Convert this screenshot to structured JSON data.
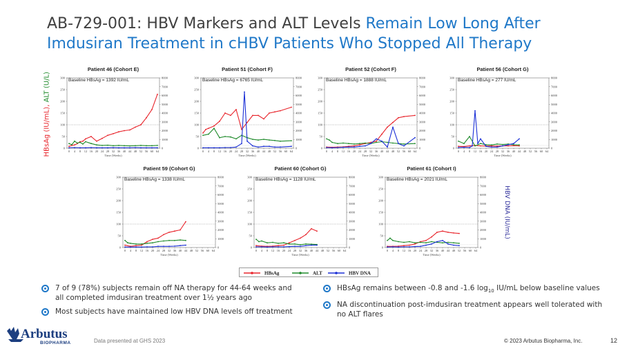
{
  "slide": {
    "title_part1": "AB-729-001: HBV Markers and ALT Levels ",
    "title_part2": "Remain Low Long After Imdusiran Treatment in cHBV Patients Who Stopped All Therapy",
    "left_axis_label_hbsag": "HBsAg (IU/mL), ",
    "left_axis_label_alt": "ALT (U/L)",
    "right_axis_label": "HBV DNA (IU/mL)",
    "page_number": "12",
    "footnote": "Data presented at GHS 2023",
    "copyright": "© 2023 Arbutus Biopharma, Inc.",
    "logo_text": "Arbutus",
    "logo_subtext": "BIOPHARMA"
  },
  "colors": {
    "hbsag": "#e8242b",
    "alt": "#1e8a2a",
    "dna": "#1a2fd6",
    "accent": "#1f78c8",
    "logo_blue": "#1d3f80"
  },
  "legend": {
    "hbsag": "HBsAg",
    "alt": "ALT",
    "dna": "HBV DNA"
  },
  "bullets_left": [
    "7 of 9 (78%) subjects remain off NA therapy for 44-64 weeks and all completed imdusiran treatment over 1½ years ago",
    "Most subjects have maintained low HBV DNA levels off treatment"
  ],
  "bullets_right": {
    "b1_pre": "HBsAg remains between -0.8 and -1.6 log",
    "b1_sub": "10",
    "b1_post": " IU/mL below baseline values",
    "b2": "NA discontinuation post-imdusiran treatment appears well tolerated with no ALT flares"
  },
  "chart_data": [
    {
      "type": "line",
      "title": "Patient 46 (Cohort E)",
      "baseline": "Baseline HBsAg = 1392 IU/mL",
      "xlabel": "Time (Weeks)",
      "x_ticks": [
        "0",
        "4",
        "8",
        "12",
        "16",
        "20",
        "24",
        "28",
        "32",
        "36",
        "40",
        "44",
        "48",
        "52",
        "56",
        "60",
        "64"
      ],
      "y_left_ticks": [
        "0",
        "50",
        "100",
        "150",
        "200",
        "250",
        "300"
      ],
      "y_right_ticks": [
        "0",
        "1000",
        "2000",
        "3000",
        "4000",
        "5000",
        "6000",
        "7000",
        "8000"
      ],
      "ylim": [
        0,
        300
      ],
      "y2lim": [
        0,
        8000
      ],
      "series": [
        {
          "name": "HBsAg",
          "axis": "left",
          "x": [
            0,
            2,
            4,
            6,
            8,
            10,
            12,
            16,
            20,
            24,
            28,
            32,
            36,
            40,
            44,
            48,
            52,
            56,
            60,
            64
          ],
          "y": [
            8,
            12,
            14,
            20,
            28,
            30,
            40,
            50,
            30,
            42,
            55,
            62,
            70,
            75,
            78,
            90,
            100,
            130,
            165,
            230
          ]
        },
        {
          "name": "ALT",
          "axis": "left",
          "x": [
            0,
            2,
            4,
            6,
            8,
            10,
            12,
            16,
            20,
            24,
            28,
            32,
            36,
            40,
            44,
            48,
            52,
            56,
            60,
            64
          ],
          "y": [
            20,
            15,
            30,
            22,
            25,
            18,
            28,
            20,
            14,
            12,
            13,
            11,
            12,
            11,
            10,
            11,
            12,
            11,
            11,
            12
          ]
        },
        {
          "name": "HBV DNA",
          "axis": "left",
          "x": [
            0,
            4,
            8,
            12,
            16,
            20,
            24,
            28,
            32,
            36,
            40,
            44,
            48,
            52,
            56,
            60,
            64
          ],
          "y": [
            2,
            3,
            2,
            2,
            3,
            2,
            2,
            2,
            3,
            2,
            2,
            2,
            3,
            2,
            2,
            2,
            2
          ]
        }
      ]
    },
    {
      "type": "line",
      "title": "Patient 51 (Cohort F)",
      "baseline": "Baseline HBsAg = 6765 IU/mL",
      "xlabel": "Time (Weeks)",
      "x_ticks": [
        "0",
        "4",
        "8",
        "12",
        "16",
        "20",
        "24",
        "28",
        "32",
        "36",
        "40",
        "44",
        "48",
        "52",
        "56",
        "60",
        "64"
      ],
      "y_left_ticks": [
        "0",
        "50",
        "100",
        "150",
        "200",
        "250",
        "300"
      ],
      "y_right_ticks": [
        "0",
        "1000",
        "2000",
        "3000",
        "4000",
        "5000",
        "6000",
        "7000",
        "8000"
      ],
      "ylim": [
        0,
        300
      ],
      "y2lim": [
        0,
        8000
      ],
      "series": [
        {
          "name": "HBsAg",
          "axis": "left",
          "x": [
            0,
            2,
            4,
            8,
            12,
            16,
            20,
            24,
            28,
            32,
            36,
            40,
            44,
            48,
            52,
            56,
            64
          ],
          "y": [
            65,
            80,
            85,
            95,
            115,
            150,
            140,
            165,
            80,
            110,
            140,
            140,
            125,
            150,
            155,
            160,
            175
          ]
        },
        {
          "name": "ALT",
          "axis": "left",
          "x": [
            0,
            4,
            8,
            12,
            16,
            20,
            24,
            28,
            32,
            36,
            40,
            44,
            48,
            52,
            56,
            64
          ],
          "y": [
            55,
            60,
            85,
            45,
            50,
            48,
            40,
            55,
            45,
            38,
            35,
            38,
            35,
            33,
            30,
            32
          ]
        },
        {
          "name": "HBV DNA",
          "axis": "left",
          "x": [
            0,
            4,
            8,
            12,
            16,
            20,
            24,
            28,
            30,
            32,
            36,
            40,
            44,
            48,
            52,
            56,
            64
          ],
          "y": [
            2,
            2,
            2,
            2,
            3,
            3,
            5,
            20,
            240,
            30,
            10,
            5,
            8,
            8,
            5,
            5,
            8
          ]
        }
      ]
    },
    {
      "type": "line",
      "title": "Patient 52 (Cohort F)",
      "baseline": "Baseline HBsAg = 1888 IU/mL",
      "xlabel": "Time (Weeks)",
      "x_ticks": [
        "0",
        "4",
        "8",
        "12",
        "16",
        "20",
        "24",
        "28",
        "32",
        "36",
        "40",
        "44",
        "48",
        "52",
        "56",
        "60",
        "64"
      ],
      "y_left_ticks": [
        "0",
        "50",
        "100",
        "150",
        "200",
        "250",
        "300"
      ],
      "y_right_ticks": [
        "0",
        "1000",
        "2000",
        "3000",
        "4000",
        "5000",
        "6000",
        "7000",
        "8000"
      ],
      "ylim": [
        0,
        300
      ],
      "y2lim": [
        0,
        8000
      ],
      "series": [
        {
          "name": "HBsAg",
          "axis": "left",
          "x": [
            0,
            4,
            8,
            12,
            16,
            20,
            24,
            28,
            32,
            36,
            40,
            44,
            48,
            52,
            56,
            64
          ],
          "y": [
            5,
            4,
            5,
            6,
            8,
            10,
            15,
            20,
            25,
            30,
            60,
            90,
            110,
            130,
            135,
            140
          ]
        },
        {
          "name": "ALT",
          "axis": "left",
          "x": [
            0,
            2,
            4,
            8,
            12,
            16,
            20,
            24,
            28,
            32,
            36,
            40,
            44,
            48,
            52,
            56,
            64
          ],
          "y": [
            40,
            35,
            25,
            20,
            22,
            20,
            18,
            20,
            22,
            20,
            25,
            28,
            25,
            22,
            20,
            18,
            20
          ]
        },
        {
          "name": "HBV DNA",
          "axis": "left",
          "x": [
            0,
            4,
            8,
            12,
            16,
            20,
            24,
            28,
            32,
            36,
            40,
            44,
            48,
            52,
            56,
            64
          ],
          "y": [
            3,
            2,
            3,
            4,
            5,
            5,
            8,
            10,
            20,
            40,
            30,
            5,
            90,
            20,
            10,
            45
          ]
        }
      ]
    },
    {
      "type": "line",
      "title": "Patient 56 (Cohort G)",
      "baseline": "Baseline HBsAg = 277 IU/mL",
      "xlabel": "Time (Weeks)",
      "x_ticks": [
        "0",
        "4",
        "8",
        "12",
        "16",
        "20",
        "24",
        "28",
        "32",
        "36",
        "40",
        "44",
        "48",
        "52",
        "56",
        "60",
        "64"
      ],
      "y_left_ticks": [
        "0",
        "50",
        "100",
        "150",
        "200",
        "250",
        "300"
      ],
      "y_right_ticks": [
        "0",
        "1000",
        "2000",
        "3000",
        "4000",
        "5000",
        "6000",
        "7000",
        "8000"
      ],
      "ylim": [
        0,
        300
      ],
      "y2lim": [
        0,
        8000
      ],
      "series": [
        {
          "name": "HBsAg",
          "axis": "left",
          "x": [
            0,
            4,
            8,
            12,
            16,
            20,
            24,
            28,
            32,
            36,
            40,
            44
          ],
          "y": [
            8,
            7,
            10,
            12,
            10,
            9,
            10,
            9,
            10,
            10,
            11,
            10
          ]
        },
        {
          "name": "ALT",
          "axis": "left",
          "x": [
            0,
            4,
            8,
            12,
            16,
            20,
            24,
            28,
            32,
            36,
            40,
            44
          ],
          "y": [
            30,
            20,
            50,
            10,
            20,
            15,
            14,
            18,
            16,
            18,
            15,
            14
          ]
        },
        {
          "name": "HBV DNA",
          "axis": "left",
          "x": [
            0,
            4,
            8,
            10,
            12,
            14,
            16,
            20,
            24,
            28,
            32,
            36,
            40,
            44
          ],
          "y": [
            3,
            4,
            3,
            10,
            160,
            20,
            40,
            8,
            5,
            5,
            10,
            15,
            20,
            40
          ]
        }
      ]
    },
    {
      "type": "line",
      "title": "Patient 59 (Cohort G)",
      "baseline": "Baseline HBsAg = 1338 IU/mL",
      "xlabel": "Time (Weeks)",
      "x_ticks": [
        "0",
        "4",
        "8",
        "12",
        "16",
        "20",
        "24",
        "28",
        "32",
        "36",
        "40",
        "44",
        "48",
        "52",
        "56",
        "60",
        "64"
      ],
      "y_left_ticks": [
        "0",
        "50",
        "100",
        "150",
        "200",
        "250",
        "300"
      ],
      "y_right_ticks": [
        "0",
        "1000",
        "2000",
        "3000",
        "4000",
        "5000",
        "6000",
        "7000",
        "8000"
      ],
      "ylim": [
        0,
        300
      ],
      "y2lim": [
        0,
        8000
      ],
      "series": [
        {
          "name": "HBsAg",
          "axis": "left",
          "x": [
            0,
            4,
            8,
            12,
            16,
            20,
            24,
            28,
            32,
            36,
            40,
            44
          ],
          "y": [
            10,
            5,
            8,
            10,
            25,
            35,
            40,
            55,
            65,
            70,
            75,
            110
          ]
        },
        {
          "name": "ALT",
          "axis": "left",
          "x": [
            0,
            2,
            4,
            8,
            12,
            16,
            20,
            24,
            28,
            32,
            36,
            40,
            44
          ],
          "y": [
            30,
            20,
            18,
            15,
            15,
            18,
            20,
            25,
            28,
            30,
            30,
            32,
            30
          ]
        },
        {
          "name": "HBV DNA",
          "axis": "left",
          "x": [
            0,
            4,
            8,
            12,
            16,
            20,
            24,
            28,
            32,
            36,
            40,
            44
          ],
          "y": [
            2,
            2,
            2,
            2,
            3,
            3,
            5,
            5,
            5,
            6,
            8,
            10
          ]
        }
      ]
    },
    {
      "type": "line",
      "title": "Patient 60 (Cohort G)",
      "baseline": "Baseline HBsAg = 1128 IU/mL",
      "xlabel": "Time (Weeks)",
      "x_ticks": [
        "0",
        "4",
        "8",
        "12",
        "16",
        "20",
        "24",
        "28",
        "32",
        "36",
        "40",
        "44",
        "48",
        "52",
        "56",
        "60",
        "64"
      ],
      "y_left_ticks": [
        "0",
        "50",
        "100",
        "150",
        "200",
        "250",
        "300"
      ],
      "y_right_ticks": [
        "0",
        "1000",
        "2000",
        "3000",
        "4000",
        "5000",
        "6000",
        "7000",
        "8000"
      ],
      "ylim": [
        0,
        300
      ],
      "y2lim": [
        0,
        8000
      ],
      "series": [
        {
          "name": "HBsAg",
          "axis": "left",
          "x": [
            0,
            4,
            8,
            12,
            16,
            20,
            24,
            28,
            32,
            36,
            40,
            44
          ],
          "y": [
            8,
            6,
            5,
            6,
            8,
            10,
            20,
            30,
            40,
            55,
            80,
            70
          ]
        },
        {
          "name": "ALT",
          "axis": "left",
          "x": [
            0,
            2,
            4,
            8,
            12,
            16,
            20,
            24,
            28,
            32,
            36,
            40,
            44
          ],
          "y": [
            35,
            25,
            28,
            20,
            22,
            18,
            20,
            15,
            15,
            12,
            15,
            14,
            13
          ]
        },
        {
          "name": "HBV DNA",
          "axis": "left",
          "x": [
            0,
            4,
            8,
            12,
            16,
            20,
            24,
            28,
            32,
            36,
            40,
            44
          ],
          "y": [
            3,
            3,
            2,
            3,
            3,
            3,
            4,
            5,
            5,
            8,
            10,
            10
          ]
        }
      ]
    },
    {
      "type": "line",
      "title": "Patient 61 (Cohort I)",
      "baseline": "Baseline HBsAg = 2021 IU/mL",
      "xlabel": "Time (Weeks)",
      "x_ticks": [
        "0",
        "4",
        "8",
        "12",
        "16",
        "20",
        "24",
        "28",
        "32",
        "36",
        "40",
        "44",
        "48",
        "52",
        "56",
        "60",
        "64"
      ],
      "y_left_ticks": [
        "0",
        "50",
        "100",
        "150",
        "200",
        "250",
        "300"
      ],
      "y_right_ticks": [
        "0",
        "1000",
        "2000",
        "3000",
        "4000",
        "5000",
        "6000",
        "7000",
        "8000"
      ],
      "ylim": [
        0,
        300
      ],
      "y2lim": [
        0,
        8000
      ],
      "series": [
        {
          "name": "HBsAg",
          "axis": "left",
          "x": [
            0,
            4,
            8,
            12,
            16,
            20,
            24,
            28,
            32,
            36,
            40,
            44,
            48,
            52
          ],
          "y": [
            5,
            5,
            6,
            8,
            10,
            15,
            25,
            30,
            45,
            65,
            70,
            65,
            62,
            60
          ]
        },
        {
          "name": "ALT",
          "axis": "left",
          "x": [
            0,
            2,
            4,
            8,
            12,
            16,
            20,
            24,
            28,
            32,
            36,
            40,
            44,
            48,
            52
          ],
          "y": [
            30,
            40,
            30,
            25,
            22,
            25,
            20,
            22,
            20,
            25,
            22,
            20,
            22,
            20,
            18
          ]
        },
        {
          "name": "HBV DNA",
          "axis": "left",
          "x": [
            0,
            4,
            8,
            12,
            16,
            20,
            24,
            28,
            32,
            36,
            40,
            44,
            48,
            52
          ],
          "y": [
            2,
            3,
            2,
            3,
            3,
            4,
            5,
            10,
            15,
            25,
            30,
            15,
            10,
            8
          ]
        }
      ]
    }
  ]
}
